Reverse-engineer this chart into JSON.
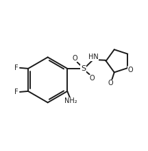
{
  "background_color": "#ffffff",
  "line_color": "#1a1a1a",
  "line_width": 1.4,
  "font_size": 7.0,
  "figsize": [
    2.16,
    2.2
  ],
  "dpi": 100,
  "xlim": [
    0,
    10
  ],
  "ylim": [
    0,
    10.2
  ]
}
